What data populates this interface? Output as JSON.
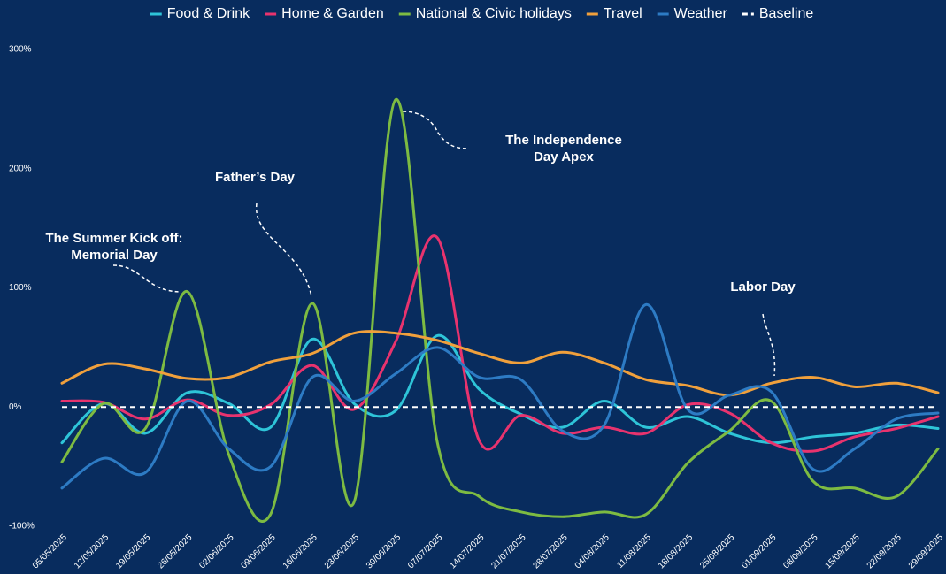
{
  "chart_data": {
    "type": "line",
    "categories": [
      "05/05/2025",
      "12/05/2025",
      "19/05/2025",
      "26/05/2025",
      "02/06/2025",
      "09/06/2025",
      "16/06/2025",
      "23/06/2025",
      "30/06/2025",
      "07/07/2025",
      "14/07/2025",
      "21/07/2025",
      "28/07/2025",
      "04/08/2025",
      "11/08/2025",
      "18/08/2025",
      "25/08/2025",
      "01/09/2025",
      "08/09/2025",
      "15/09/2025",
      "22/09/2025",
      "29/09/2025"
    ],
    "series": [
      {
        "name": "Food & Drink",
        "color": "#2ec4d8",
        "values": [
          -30,
          3,
          -22,
          12,
          3,
          -17,
          57,
          3,
          -3,
          60,
          15,
          -6,
          -17,
          5,
          -17,
          -8,
          -22,
          -30,
          -25,
          -22,
          -15,
          -18
        ]
      },
      {
        "name": "Home & Garden",
        "color": "#e8336e",
        "values": [
          5,
          4,
          -10,
          6,
          -7,
          2,
          35,
          -2,
          55,
          142,
          -28,
          -7,
          -22,
          -17,
          -22,
          2,
          -5,
          -30,
          -37,
          -25,
          -18,
          -8
        ]
      },
      {
        "name": "National & Civic holidays",
        "color": "#7dbb42",
        "values": [
          -46,
          3,
          -18,
          97,
          -40,
          -90,
          87,
          -80,
          258,
          -30,
          -75,
          -88,
          -92,
          -88,
          -90,
          -47,
          -20,
          5,
          -62,
          -68,
          -75,
          -35
        ]
      },
      {
        "name": "Travel",
        "color": "#f0a03c",
        "values": [
          20,
          36,
          32,
          24,
          25,
          38,
          45,
          62,
          62,
          56,
          45,
          37,
          46,
          37,
          23,
          18,
          10,
          20,
          25,
          17,
          20,
          12
        ]
      },
      {
        "name": "Weather",
        "color": "#2d7bc4",
        "values": [
          -68,
          -43,
          -55,
          5,
          -35,
          -50,
          25,
          5,
          28,
          50,
          25,
          23,
          -20,
          -15,
          86,
          -2,
          10,
          13,
          -52,
          -35,
          -10,
          -5
        ]
      }
    ],
    "baseline": {
      "name": "Baseline",
      "value": 0,
      "color": "#ffffff"
    },
    "ylim": [
      -100,
      300
    ],
    "yticks": [
      {
        "value": -100,
        "label": "-100%"
      },
      {
        "value": 0,
        "label": "0%"
      },
      {
        "value": 100,
        "label": "100%"
      },
      {
        "value": 200,
        "label": "200%"
      },
      {
        "value": 300,
        "label": "300%"
      }
    ],
    "annotations": [
      {
        "lines": [
          "The Summer Kick off:",
          "Memorial Day"
        ]
      },
      {
        "lines": [
          "Father’s Day"
        ]
      },
      {
        "lines": [
          "The Independence",
          "Day Apex"
        ]
      },
      {
        "lines": [
          "Labor Day"
        ]
      }
    ]
  }
}
